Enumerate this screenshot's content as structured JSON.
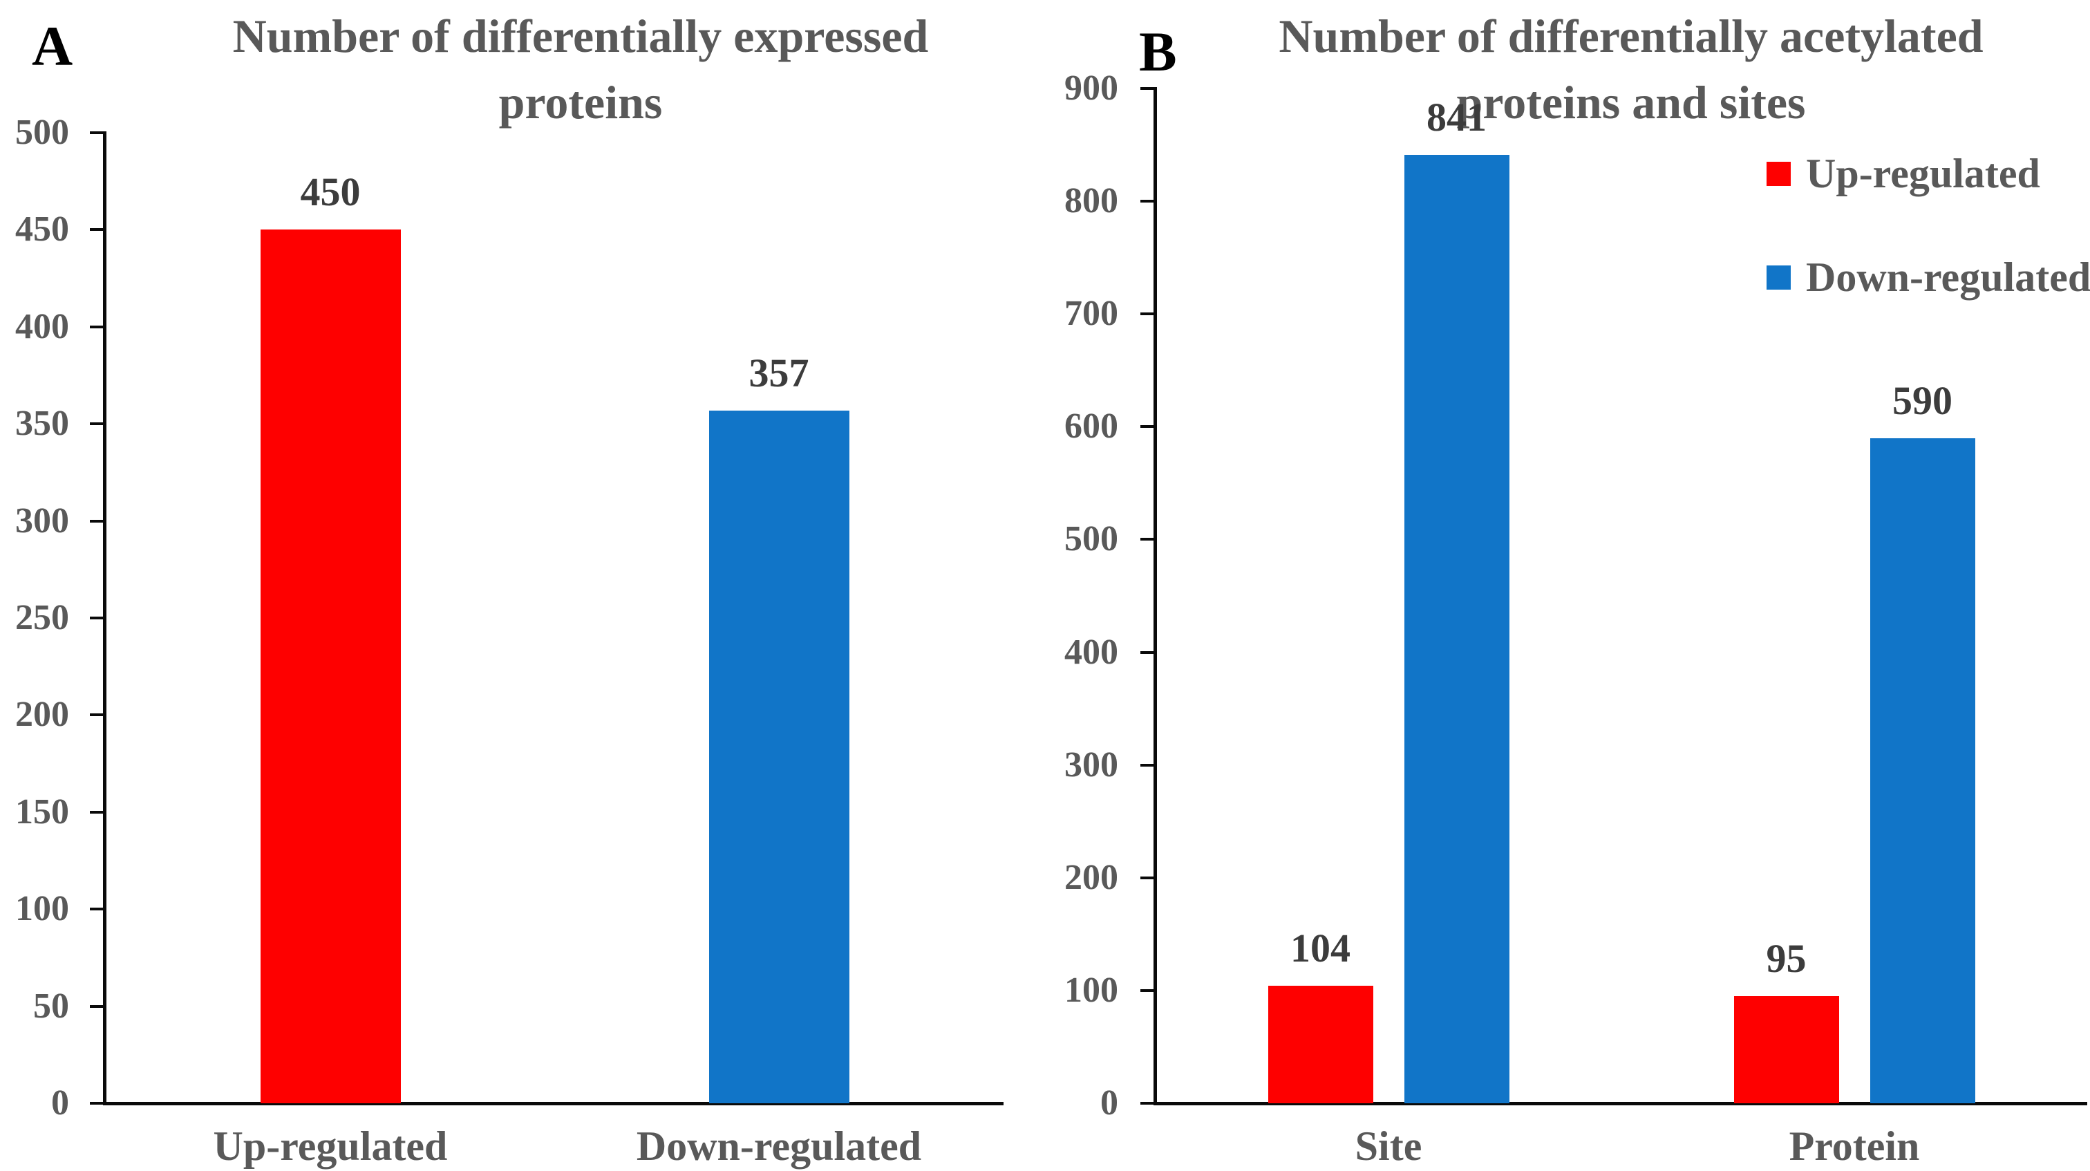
{
  "figure": {
    "panels": [
      {
        "letter": "A",
        "title": "Number of differentially expressed\nproteins"
      },
      {
        "letter": "B",
        "title": "Number of differentially acetylated\nproteins and sites"
      }
    ]
  },
  "legend": {
    "items": [
      {
        "label": "Up-regulated",
        "color": "#fe0000"
      },
      {
        "label": "Down-regulated",
        "color": "#1175c8"
      }
    ]
  },
  "colors": {
    "up_regulated_red": "#fe0000",
    "down_regulated_blue": "#1175c8",
    "title_text": "#595959",
    "value_label_text": "#3c3c3c",
    "axis_line": "#0a0a0a"
  },
  "chart_data": [
    {
      "type": "bar",
      "panel": "A",
      "title": "Number of differentially expressed proteins",
      "categories": [
        "Up-regulated",
        "Down-regulated"
      ],
      "values": [
        450,
        357
      ],
      "bar_colors": [
        "#fe0000",
        "#1175c8"
      ],
      "data_labels": [
        "450",
        "357"
      ],
      "xlabel": "",
      "ylabel": "",
      "ylim": [
        0,
        500
      ],
      "ytick_step": 50,
      "yticks": [
        0,
        50,
        100,
        150,
        200,
        250,
        300,
        350,
        400,
        450,
        500
      ],
      "grid": false,
      "legend": false
    },
    {
      "type": "bar",
      "panel": "B",
      "title": "Number of differentially acetylated proteins and sites",
      "categories": [
        "Site",
        "Protein"
      ],
      "series": [
        {
          "name": "Up-regulated",
          "color": "#fe0000",
          "values": [
            104,
            95
          ]
        },
        {
          "name": "Down-regulated",
          "color": "#1175c8",
          "values": [
            841,
            590
          ]
        }
      ],
      "data_labels": [
        [
          "104",
          "95"
        ],
        [
          "841",
          "590"
        ]
      ],
      "xlabel": "",
      "ylabel": "",
      "ylim": [
        0,
        900
      ],
      "ytick_step": 100,
      "yticks": [
        0,
        100,
        200,
        300,
        400,
        500,
        600,
        700,
        800,
        900
      ],
      "grid": false,
      "legend_position": "top-right"
    }
  ]
}
